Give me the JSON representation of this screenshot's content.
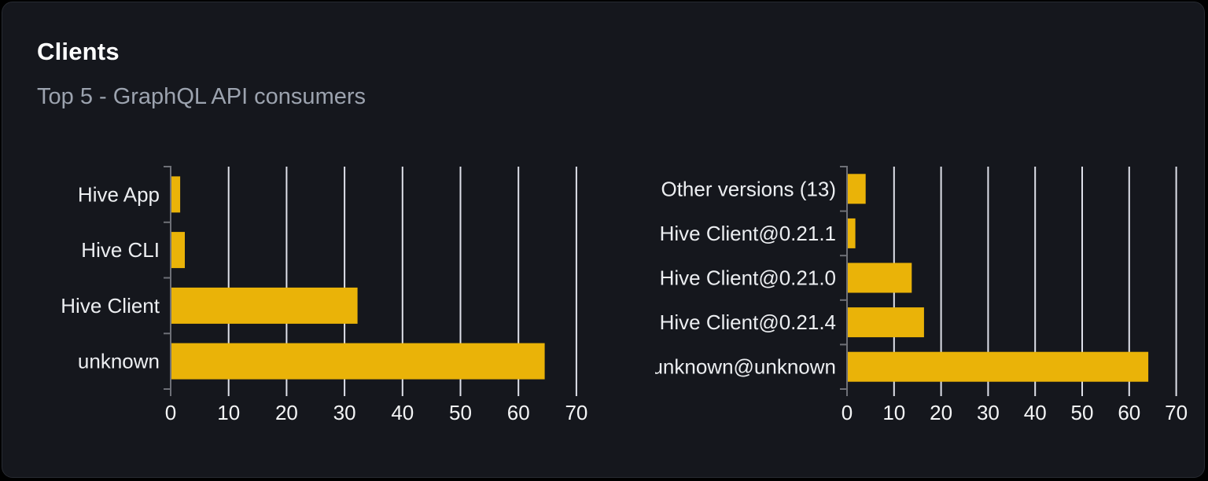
{
  "card": {
    "title": "Clients",
    "subtitle": "Top 5 - GraphQL API consumers"
  },
  "colors": {
    "page_bg": "#000000",
    "card_bg": "#15171d",
    "card_border": "#272a31",
    "title": "#ffffff",
    "subtitle": "#9ca3af",
    "bar": "#eab308",
    "grid": "#dfe1ea",
    "axis": "#6e7077",
    "category_label": "#eceef1",
    "tick_label": "#f4f5f6"
  },
  "chart_data": [
    {
      "type": "bar",
      "orientation": "horizontal",
      "title": "",
      "xlabel": "",
      "ylabel": "",
      "legend_position": "none",
      "grid": "vertical",
      "xlim": [
        0,
        72
      ],
      "xticks": [
        0,
        10,
        20,
        30,
        40,
        50,
        60,
        70
      ],
      "categories": [
        "Hive App",
        "Hive CLI",
        "Hive Client",
        "unknown"
      ],
      "values": [
        1.5,
        2.3,
        32.1,
        64.4
      ]
    },
    {
      "type": "bar",
      "orientation": "horizontal",
      "title": "",
      "xlabel": "",
      "ylabel": "",
      "legend_position": "none",
      "grid": "vertical",
      "xlim": [
        0,
        72
      ],
      "xticks": [
        0,
        10,
        20,
        30,
        40,
        50,
        60,
        70
      ],
      "categories": [
        "Other versions (13)",
        "Hive Client@0.21.1",
        "Hive Client@0.21.0",
        "Hive Client@0.21.4",
        "unknown@unknown"
      ],
      "values": [
        3.8,
        1.6,
        13.6,
        16.2,
        63.9
      ]
    }
  ]
}
